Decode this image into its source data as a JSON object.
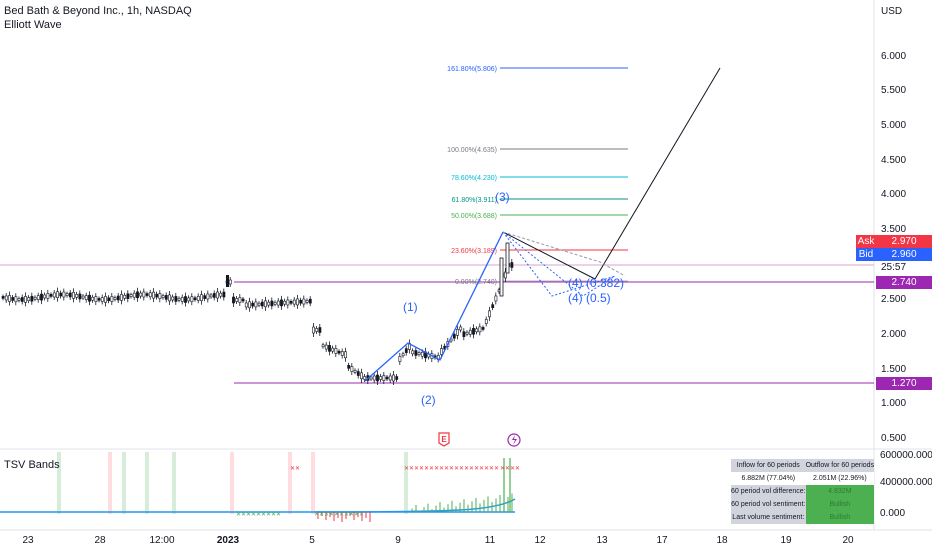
{
  "header": {
    "symbol_line": "Bed Bath & Beyond Inc., 1h, NASDAQ",
    "indicator": "Elliott Wave",
    "currency": "USD"
  },
  "price_axis": {
    "ticks": [
      "6.000",
      "5.500",
      "5.000",
      "4.500",
      "4.000",
      "3.500",
      "2.500",
      "2.000",
      "1.500",
      "1.000",
      "0.500"
    ],
    "ask_label": "Ask",
    "ask_value": "2.970",
    "bid_label": "Bid",
    "bid_value": "2.960",
    "countdown": "25:57",
    "level_upper": "2.740",
    "level_lower": "1.270"
  },
  "fib_labels": [
    "161.80%(5.806)",
    "100.00%(4.635)",
    "78.60%(4.230)",
    "61.80%(3.911)",
    "50.00%(3.688)",
    "23.60%(3.189)",
    "0.00%(2.740)"
  ],
  "wave_labels": {
    "w1": "(1)",
    "w2": "(2)",
    "w3": "(3)",
    "w4a": "(4) (0.382)",
    "w4b": "(4) (0.5)"
  },
  "event_icons": {
    "earnings": "E",
    "split": "lightning-icon"
  },
  "tsv": {
    "title": "TSV Bands",
    "axis_ticks": [
      "600000.000",
      "400000.000",
      "0.000"
    ],
    "table": {
      "h1": "Inflow for 60 periods",
      "h2": "Outflow for 60 periods",
      "in_val": "6.882M (77.04%)",
      "out_val": "2.051M (22.96%)",
      "r1_label": "60 period vol difference:",
      "r1_val": "4.832M",
      "r2_label": "60 period vol sentiment:",
      "r2_val": "Bullish",
      "r3_label": "Last volume sentiment:",
      "r3_val": "Bullish"
    }
  },
  "time_axis": [
    "23",
    "28",
    "12:00",
    "2023",
    "5",
    "9",
    "11",
    "12",
    "13",
    "17",
    "18",
    "19",
    "20"
  ],
  "colors": {
    "up": "#131722",
    "down": "#131722",
    "wave": "#2962ff",
    "level": "#9c27b0",
    "ask": "#f23645",
    "bid": "#2962ff",
    "bull": "#4caf50",
    "bear": "#f23645"
  }
}
